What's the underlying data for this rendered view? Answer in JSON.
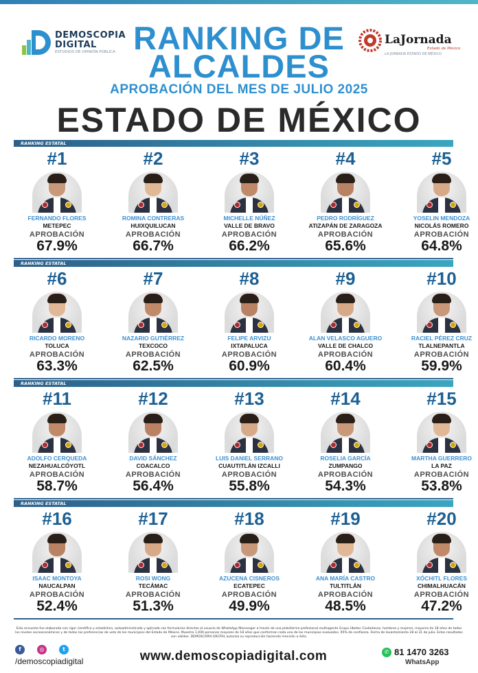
{
  "brand": {
    "name_line1": "DEMOSCOPIA",
    "name_line2": "DIGITAL",
    "tagline": "ESTUDIOS DE OPINIÓN PÚBLICA",
    "partner_name": "LaJornada",
    "partner_sub": "Estado de México",
    "partner_tag": "LA JORNADA ESTADO DE MÉXICO"
  },
  "header": {
    "title_line1": "RANKING DE",
    "title_line2": "ALCALDES",
    "subtitle": "APROBACIÓN DEL MES DE JULIO 2025",
    "state": "ESTADO DE MÉXICO"
  },
  "section_label": "RANKING ESTATAL",
  "approval_label": "APROBACIÓN",
  "colors": {
    "accent": "#2e8fcf",
    "band": "#2d5f8a",
    "text": "#1a1a1a"
  },
  "rows": [
    {
      "band_label": "RANKING ESTATAL",
      "mayors": [
        {
          "rank": "#1",
          "name": "FERNANDO FLORES",
          "city": "METEPEC",
          "approval": "67.9%"
        },
        {
          "rank": "#2",
          "name": "ROMINA CONTRERAS",
          "city": "HUIXQUILUCAN",
          "approval": "66.7%"
        },
        {
          "rank": "#3",
          "name": "MICHELLE NÚÑEZ",
          "city": "VALLE DE BRAVO",
          "approval": "66.2%"
        },
        {
          "rank": "#4",
          "name": "PEDRO RODRÍGUEZ",
          "city": "ATIZAPÁN DE ZARAGOZA",
          "approval": "65.6%"
        },
        {
          "rank": "#5",
          "name": "YOSELIN MENDOZA",
          "city": "NICOLÁS ROMERO",
          "approval": "64.8%"
        }
      ]
    },
    {
      "band_label": "RANKING ESTATAL",
      "mayors": [
        {
          "rank": "#6",
          "name": "RICARDO MORENO",
          "city": "TOLUCA",
          "approval": "63.3%"
        },
        {
          "rank": "#7",
          "name": "NAZARIO GUTIÉRREZ",
          "city": "TEXCOCO",
          "approval": "62.5%"
        },
        {
          "rank": "#8",
          "name": "FELIPE ARVIZU",
          "city": "IXTAPALUCA",
          "approval": "60.9%"
        },
        {
          "rank": "#9",
          "name": "ALAN VELASCO AGUERO",
          "city": "VALLE DE CHALCO",
          "approval": "60.4%"
        },
        {
          "rank": "#10",
          "name": "RACIEL PÉREZ CRUZ",
          "city": "TLALNEPANTLA",
          "approval": "59.9%"
        }
      ]
    },
    {
      "band_label": "RANKING ESTATAL",
      "mayors": [
        {
          "rank": "#11",
          "name": "ADOLFO CERQUEDA",
          "city": "NEZAHUALCÓYOTL",
          "approval": "58.7%"
        },
        {
          "rank": "#12",
          "name": "DAVID SÁNCHEZ",
          "city": "COACALCO",
          "approval": "56.4%"
        },
        {
          "rank": "#13",
          "name": "LUIS DANIEL SERRANO",
          "city": "CUAUTITLÁN IZCALLI",
          "approval": "55.8%"
        },
        {
          "rank": "#14",
          "name": "ROSELIA GARCÍA",
          "city": "ZUMPANGO",
          "approval": "54.3%"
        },
        {
          "rank": "#15",
          "name": "MARTHA GUERRERO",
          "city": "LA PAZ",
          "approval": "53.8%"
        }
      ]
    },
    {
      "band_label": "RANKING ESTATAL",
      "mayors": [
        {
          "rank": "#16",
          "name": "ISAAC MONTOYA",
          "city": "NAUCALPAN",
          "approval": "52.4%"
        },
        {
          "rank": "#17",
          "name": "ROSI WONG",
          "city": "TECÁMAC",
          "approval": "51.3%"
        },
        {
          "rank": "#18",
          "name": "AZUCENA CISNEROS",
          "city": "ECATEPEC",
          "approval": "49.9%"
        },
        {
          "rank": "#19",
          "name": "ANA MARÍA CASTRO",
          "city": "TULTITLÁN",
          "approval": "48.5%"
        },
        {
          "rank": "#20",
          "name": "XÓCHITL FLORES",
          "city": "CHIMALHUACÁN",
          "approval": "47.2%"
        }
      ]
    }
  ],
  "footer": {
    "note": "Esta encuesta fue elaborada con rigor científico y estadístico, autoadministrada y aplicada con formularios directos al usuario de WhatsApp Messenger a través de una plataforma profesional multiagente Grupo Ubetec Ciudadanos, hombres y mujeres, mayores de 18 años de todos los niveles socioeconómicos y de todas las preferencias de voto de los municipios del Estado de México. Muestra 1,000 personas mayores de 18 años que conforman cada uno de los municipios evaluados. 95% de confianza. Fecha de levantamiento 28 al 31 de julio. Estos resultados son válidos. DEMOSCOPIA DIGITAL autoriza su reproducción haciendo mención a ésta.",
    "social_icons": [
      "facebook-icon",
      "instagram-icon",
      "twitter-icon"
    ],
    "handle": "/demoscopiadigital",
    "website": "www.demoscopiadigital.com",
    "phone": "81 1470 3263",
    "phone_label": "WhatsApp"
  }
}
